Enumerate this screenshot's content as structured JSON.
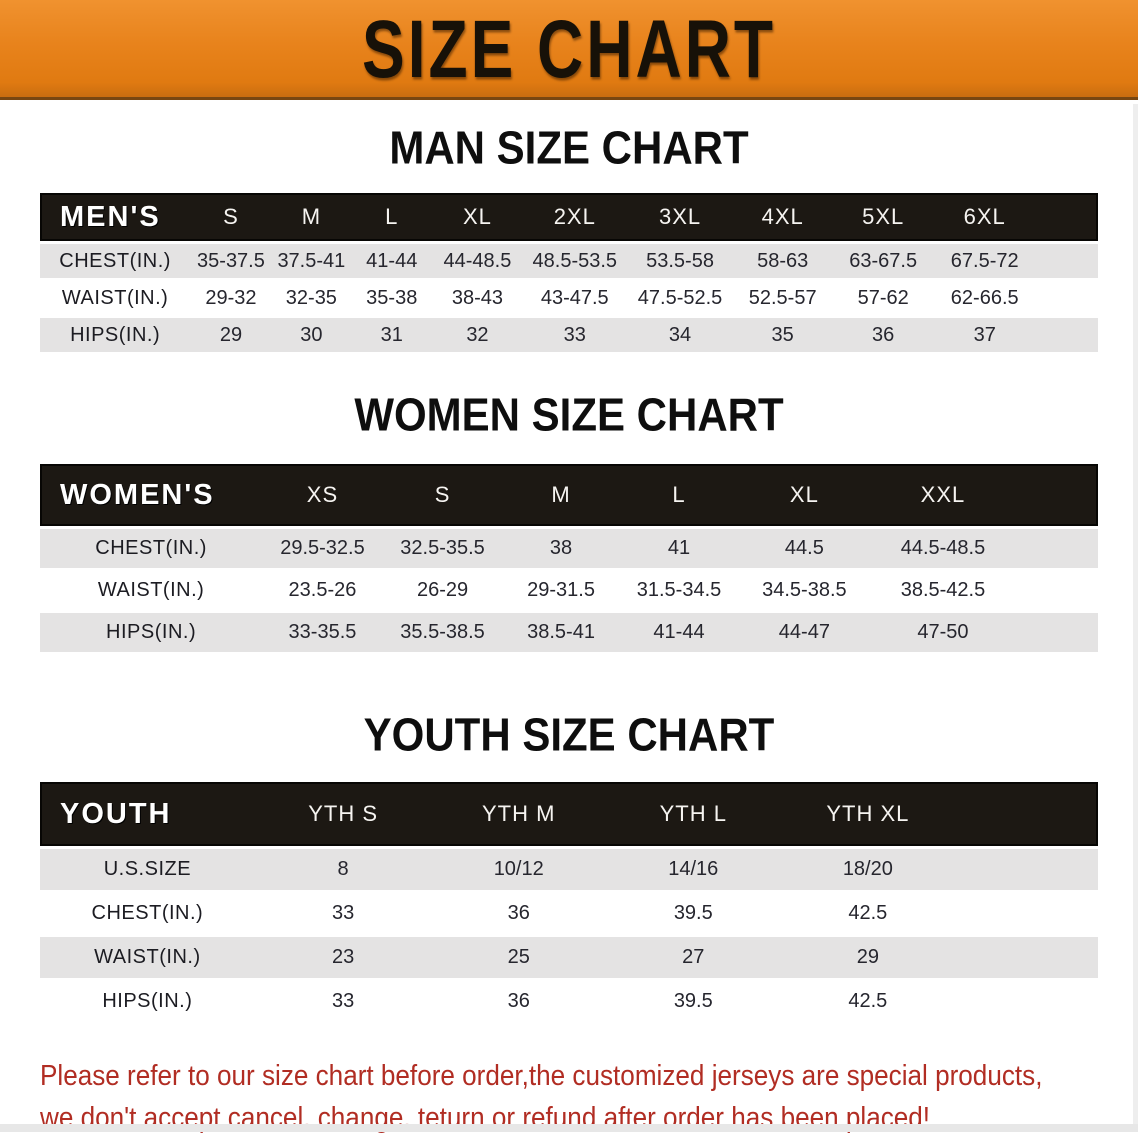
{
  "banner": {
    "title": "SIZE CHART"
  },
  "colors": {
    "banner_orange": "#E8831C",
    "header_black": "#1C1813",
    "row_gray": "#E4E3E3",
    "disclaimer_red": "#B12D23"
  },
  "sections": {
    "men": {
      "title": "MAN SIZE CHART",
      "header_label": "MEN'S",
      "columns": [
        "S",
        "M",
        "L",
        "XL",
        "2XL",
        "3XL",
        "4XL",
        "5XL",
        "6XL"
      ],
      "rows": [
        {
          "label": "CHEST(IN.)",
          "values": [
            "35-37.5",
            "37.5-41",
            "41-44",
            "44-48.5",
            "48.5-53.5",
            "53.5-58",
            "58-63",
            "63-67.5",
            "67.5-72"
          ]
        },
        {
          "label": "WAIST(IN.)",
          "values": [
            "29-32",
            "32-35",
            "35-38",
            "38-43",
            "43-47.5",
            "47.5-52.5",
            "52.5-57",
            "57-62",
            "62-66.5"
          ]
        },
        {
          "label": "HIPS(IN.)",
          "values": [
            "29",
            "30",
            "31",
            "32",
            "33",
            "34",
            "35",
            "36",
            "37"
          ]
        }
      ]
    },
    "women": {
      "title": "WOMEN SIZE CHART",
      "header_label": "WOMEN'S",
      "columns": [
        "XS",
        "S",
        "M",
        "L",
        "XL",
        "XXL"
      ],
      "rows": [
        {
          "label": "CHEST(IN.)",
          "values": [
            "29.5-32.5",
            "32.5-35.5",
            "38",
            "41",
            "44.5",
            "44.5-48.5"
          ]
        },
        {
          "label": "WAIST(IN.)",
          "values": [
            "23.5-26",
            "26-29",
            "29-31.5",
            "31.5-34.5",
            "34.5-38.5",
            "38.5-42.5"
          ]
        },
        {
          "label": "HIPS(IN.)",
          "values": [
            "33-35.5",
            "35.5-38.5",
            "38.5-41",
            "41-44",
            "44-47",
            "47-50"
          ]
        }
      ]
    },
    "youth": {
      "title": "YOUTH SIZE CHART",
      "header_label": "YOUTH",
      "columns": [
        "YTH S",
        "YTH M",
        "YTH L",
        "YTH XL"
      ],
      "rows": [
        {
          "label": "U.S.SIZE",
          "values": [
            "8",
            "10/12",
            "14/16",
            "18/20"
          ]
        },
        {
          "label": "CHEST(IN.)",
          "values": [
            "33",
            "36",
            "39.5",
            "42.5"
          ]
        },
        {
          "label": "WAIST(IN.)",
          "values": [
            "23",
            "25",
            "27",
            "29"
          ]
        },
        {
          "label": "HIPS(IN.)",
          "values": [
            "33",
            "36",
            "39.5",
            "42.5"
          ]
        }
      ]
    }
  },
  "disclaimer": {
    "lines": [
      "Please refer to our size chart before order,the customized jerseys are special products,",
      "we don't accept cancel, change, teturn or refund after order has been placed!"
    ]
  }
}
